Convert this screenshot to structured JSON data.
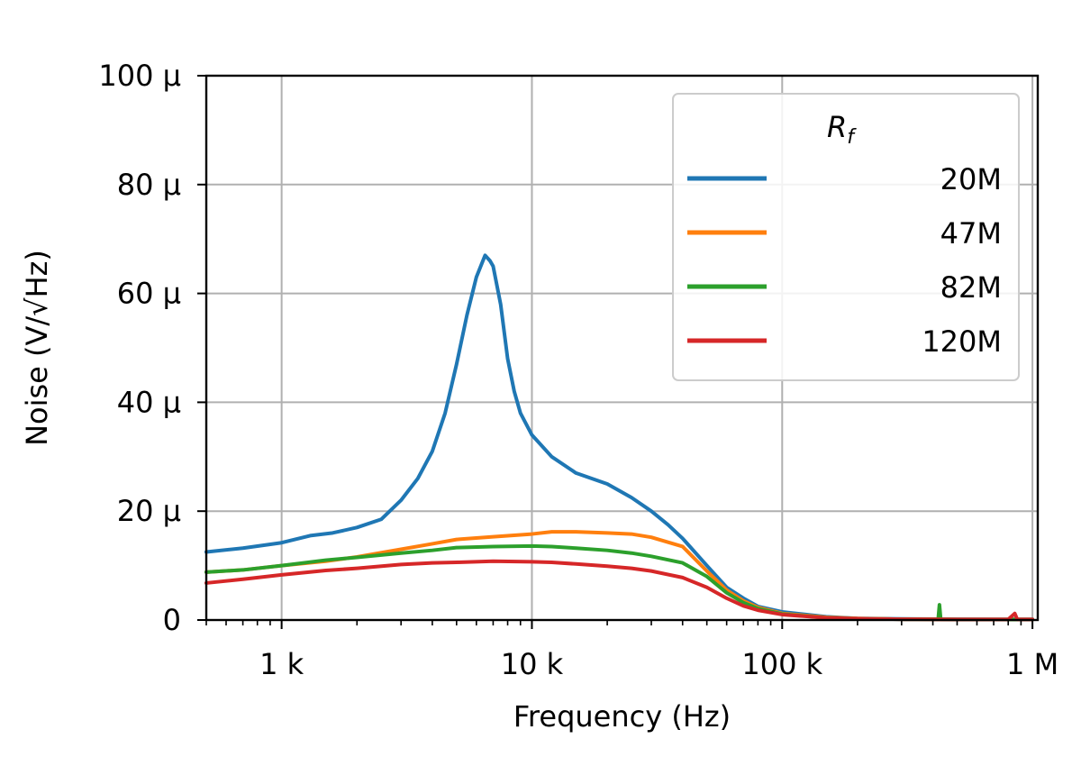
{
  "chart_data": {
    "type": "line",
    "xlabel": "Frequency (Hz)",
    "ylabel": "Noise (V/√Hz)",
    "x_scale": "log",
    "xlim": [
      500,
      1050000
    ],
    "ylim": [
      0,
      100
    ],
    "grid": true,
    "x_ticks": [
      {
        "value": 1000,
        "label": "1 k"
      },
      {
        "value": 10000,
        "label": "10 k"
      },
      {
        "value": 100000,
        "label": "100 k"
      },
      {
        "value": 1000000,
        "label": "1 M"
      }
    ],
    "y_ticks": [
      {
        "value": 0,
        "label": "0"
      },
      {
        "value": 20,
        "label": "20 µ"
      },
      {
        "value": 40,
        "label": "40 µ"
      },
      {
        "value": 60,
        "label": "60 µ"
      },
      {
        "value": 80,
        "label": "80 µ"
      },
      {
        "value": 100,
        "label": "100 µ"
      }
    ],
    "legend": {
      "title": "R_f",
      "placement": "top-right"
    },
    "series": [
      {
        "name": "20M",
        "color": "#1f77b4",
        "x": [
          500,
          700,
          1000,
          1300,
          1600,
          2000,
          2500,
          3000,
          3500,
          4000,
          4500,
          5000,
          5500,
          6000,
          6500,
          6800,
          7000,
          7500,
          8000,
          8500,
          9000,
          10000,
          12000,
          15000,
          20000,
          25000,
          30000,
          35000,
          40000,
          50000,
          60000,
          70000,
          80000,
          100000,
          150000,
          200000,
          300000,
          500000,
          700000,
          1000000
        ],
        "y": [
          12.5,
          13.2,
          14.2,
          15.5,
          16.0,
          17.0,
          18.5,
          22,
          26,
          31,
          38,
          47,
          56,
          63,
          67,
          66,
          65,
          58,
          48,
          42,
          38,
          34,
          30,
          27,
          25,
          22.5,
          20,
          17.5,
          15,
          10,
          6,
          4,
          2.5,
          1.5,
          0.6,
          0.3,
          0.2,
          0.15,
          0.12,
          0.12
        ]
      },
      {
        "name": "47M",
        "color": "#ff7f0e",
        "x": [
          500,
          700,
          1000,
          1500,
          2000,
          3000,
          4000,
          5000,
          7000,
          10000,
          12000,
          15000,
          20000,
          25000,
          30000,
          40000,
          50000,
          60000,
          70000,
          80000,
          100000,
          150000,
          200000,
          300000,
          500000,
          1000000
        ],
        "y": [
          8.8,
          9.2,
          10,
          10.8,
          11.6,
          13,
          14,
          14.8,
          15.3,
          15.8,
          16.2,
          16.2,
          16,
          15.8,
          15.2,
          13.5,
          9,
          5.5,
          3.5,
          2.3,
          1.2,
          0.5,
          0.3,
          0.15,
          0.1,
          0.1
        ]
      },
      {
        "name": "82M",
        "color": "#2ca02c",
        "x": [
          500,
          700,
          1000,
          1500,
          2000,
          3000,
          4000,
          5000,
          7000,
          10000,
          12000,
          15000,
          20000,
          25000,
          30000,
          40000,
          50000,
          60000,
          70000,
          80000,
          100000,
          150000,
          200000,
          300000,
          420000,
          425000,
          430000,
          500000,
          1000000
        ],
        "y": [
          8.8,
          9.2,
          10,
          11,
          11.5,
          12.3,
          12.8,
          13.3,
          13.5,
          13.6,
          13.5,
          13.2,
          12.8,
          12.3,
          11.7,
          10.5,
          8,
          5,
          3.2,
          2.1,
          1.1,
          0.4,
          0.25,
          0.15,
          0.15,
          2.8,
          0.15,
          0.1,
          0.1
        ]
      },
      {
        "name": "120M",
        "color": "#d62728",
        "x": [
          500,
          700,
          1000,
          1500,
          2000,
          3000,
          4000,
          5000,
          7000,
          10000,
          12000,
          15000,
          20000,
          25000,
          30000,
          40000,
          50000,
          60000,
          70000,
          80000,
          100000,
          150000,
          200000,
          300000,
          500000,
          800000,
          850000,
          870000,
          1000000
        ],
        "y": [
          6.8,
          7.5,
          8.3,
          9.1,
          9.5,
          10.2,
          10.5,
          10.6,
          10.8,
          10.7,
          10.6,
          10.3,
          9.9,
          9.5,
          9,
          7.8,
          6,
          4,
          2.6,
          1.8,
          1,
          0.4,
          0.25,
          0.15,
          0.1,
          0.1,
          1.2,
          0.1,
          0.1
        ]
      }
    ]
  }
}
